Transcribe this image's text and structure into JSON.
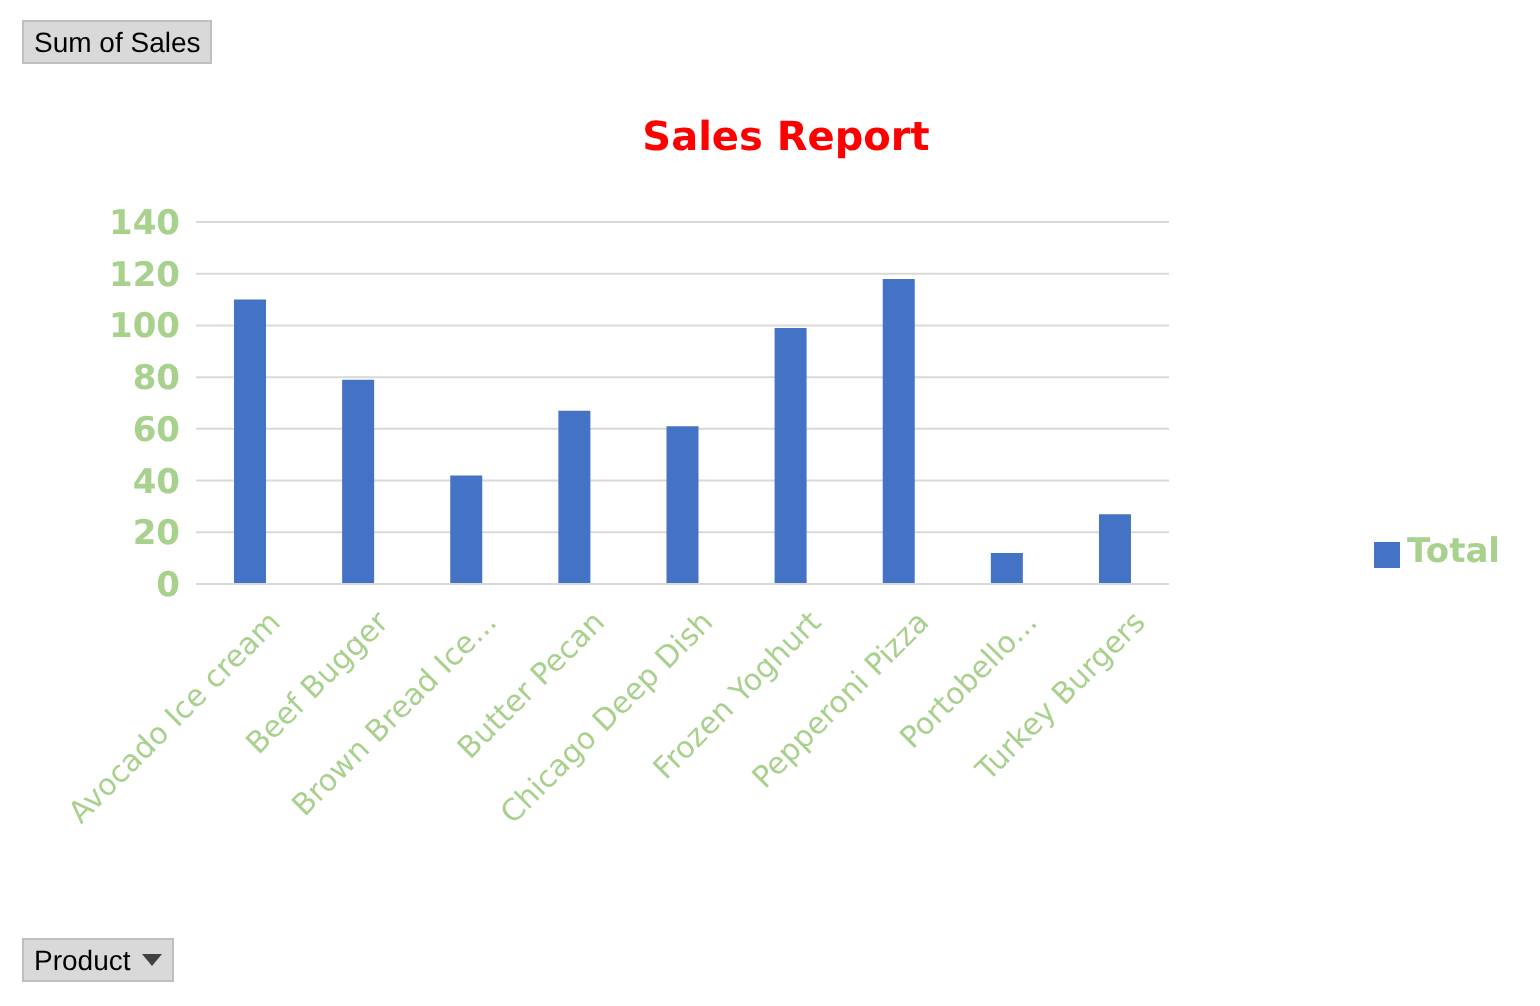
{
  "chart_data": {
    "type": "bar",
    "title": "Sales Report",
    "categories": [
      "Avocado Ice cream",
      "Beef Bugger",
      "Brown Bread Ice...",
      "Butter Pecan",
      "Chicago Deep Dish",
      "Frozen Yoghurt",
      "Pepperoni Pizza",
      "Portobello...",
      "Turkey Burgers"
    ],
    "series": [
      {
        "name": "Total",
        "color": "#4472c4",
        "values": [
          110,
          79,
          42,
          67,
          61,
          99,
          118,
          12,
          27
        ]
      }
    ],
    "ylim": [
      0,
      140
    ],
    "yticks": [
      0,
      20,
      40,
      60,
      80,
      100,
      120,
      140
    ],
    "grid": "y",
    "legend": "right",
    "annotations": [
      "Sum of Sales",
      "Product"
    ]
  }
}
